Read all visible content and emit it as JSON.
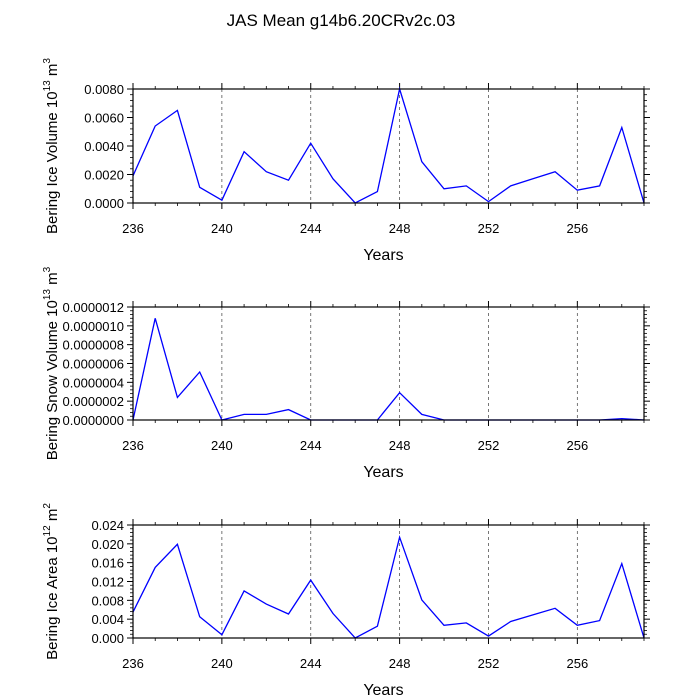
{
  "page_title": "JAS Mean g14b6.20CRv2c.03",
  "chart_data": [
    {
      "type": "line",
      "title": "JAS Mean g14b6.20CRv2c.03",
      "ylabel": {
        "text": "Bering Ice Volume 10",
        "exp": "13",
        "unit": " m",
        "unit_exp": "3"
      },
      "xlabel": "Years",
      "xlim": [
        236,
        259
      ],
      "ylim": [
        0,
        0.008
      ],
      "xticks": [
        236,
        240,
        244,
        248,
        252,
        256
      ],
      "xtick_labels": [
        "236",
        "240",
        "244",
        "248",
        "252",
        "256"
      ],
      "yticks": [
        0,
        0.002,
        0.004,
        0.006,
        0.008
      ],
      "ytick_labels": [
        "0.0000",
        "0.0020",
        "0.0040",
        "0.0060",
        "0.0080"
      ],
      "grid_x": [
        240,
        244,
        248,
        252,
        256
      ],
      "series": [
        {
          "name": "Bering Ice Volume",
          "color": "#0000ff",
          "x": [
            236,
            237,
            238,
            239,
            240,
            241,
            242,
            243,
            244,
            245,
            246,
            247,
            248,
            249,
            250,
            251,
            252,
            253,
            254,
            255,
            256,
            257,
            258,
            259
          ],
          "values": [
            0.0019,
            0.0054,
            0.0065,
            0.0011,
            0.0002,
            0.0036,
            0.0022,
            0.0016,
            0.0042,
            0.0017,
            0.0,
            0.0008,
            0.008,
            0.0029,
            0.001,
            0.0012,
            0.0001,
            0.0012,
            0.0017,
            0.0022,
            0.0009,
            0.0012,
            0.0053,
            0.0
          ]
        }
      ]
    },
    {
      "type": "line",
      "ylabel": {
        "text": "Bering Snow Volume 10",
        "exp": "13",
        "unit": " m",
        "unit_exp": "3"
      },
      "xlabel": "Years",
      "xlim": [
        236,
        259
      ],
      "ylim": [
        0,
        1.2e-06
      ],
      "xticks": [
        236,
        240,
        244,
        248,
        252,
        256
      ],
      "xtick_labels": [
        "236",
        "240",
        "244",
        "248",
        "252",
        "256"
      ],
      "yticks": [
        0,
        2e-07,
        4e-07,
        6e-07,
        8e-07,
        1e-06,
        1.2e-06
      ],
      "ytick_labels": [
        "0.0000000",
        "0.0000002",
        "0.0000004",
        "0.0000006",
        "0.0000008",
        "0.0000010",
        "0.0000012"
      ],
      "grid_x": [
        240,
        244,
        248,
        252,
        256
      ],
      "series": [
        {
          "name": "Bering Snow Volume",
          "color": "#0000ff",
          "x": [
            236,
            237,
            238,
            239,
            240,
            241,
            242,
            243,
            244,
            245,
            246,
            247,
            248,
            249,
            250,
            251,
            252,
            253,
            254,
            255,
            256,
            257,
            258,
            259
          ],
          "values": [
            0.0,
            1.08e-06,
            2.4e-07,
            5.1e-07,
            0.0,
            6e-08,
            6e-08,
            1.1e-07,
            0.0,
            0.0,
            0.0,
            0.0,
            2.9e-07,
            6e-08,
            0.0,
            0.0,
            0.0,
            0.0,
            0.0,
            0.0,
            0.0,
            0.0,
            1.5e-08,
            0.0
          ]
        }
      ]
    },
    {
      "type": "line",
      "ylabel": {
        "text": "Bering Ice Area 10",
        "exp": "12",
        "unit": " m",
        "unit_exp": "2"
      },
      "xlabel": "Years",
      "xlim": [
        236,
        259
      ],
      "ylim": [
        0,
        0.024
      ],
      "xticks": [
        236,
        240,
        244,
        248,
        252,
        256
      ],
      "xtick_labels": [
        "236",
        "240",
        "244",
        "248",
        "252",
        "256"
      ],
      "yticks": [
        0,
        0.004,
        0.008,
        0.012,
        0.016,
        0.02,
        0.024
      ],
      "ytick_labels": [
        "0.000",
        "0.004",
        "0.008",
        "0.012",
        "0.016",
        "0.020",
        "0.024"
      ],
      "grid_x": [
        240,
        244,
        248,
        252,
        256
      ],
      "series": [
        {
          "name": "Bering Ice Area",
          "color": "#0000ff",
          "x": [
            236,
            237,
            238,
            239,
            240,
            241,
            242,
            243,
            244,
            245,
            246,
            247,
            248,
            249,
            250,
            251,
            252,
            253,
            254,
            255,
            256,
            257,
            258,
            259
          ],
          "values": [
            0.0055,
            0.015,
            0.0199,
            0.0045,
            0.0007,
            0.01,
            0.0072,
            0.0051,
            0.0123,
            0.0052,
            0.0,
            0.0025,
            0.0214,
            0.0081,
            0.0027,
            0.0032,
            0.0004,
            0.0035,
            0.0049,
            0.0063,
            0.0027,
            0.0037,
            0.0158,
            0.0
          ]
        }
      ]
    }
  ]
}
